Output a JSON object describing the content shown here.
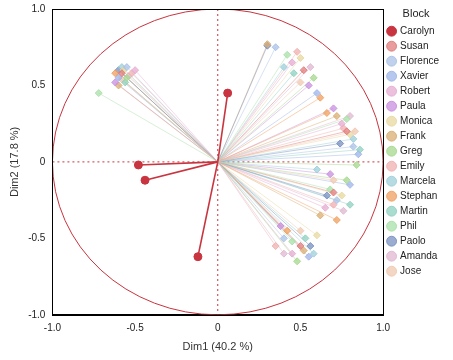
{
  "chart_data": {
    "type": "scatter",
    "x_label": "Dim1 (40.2 %)",
    "y_label": "Dim2 (17.8 %)",
    "legend_title": "Block",
    "legend": "right",
    "grid": false,
    "xlim": [
      -1,
      1
    ],
    "ylim": [
      -1,
      1
    ],
    "xticks": [
      {
        "value": -1,
        "label": "-1.0"
      },
      -0.5,
      0,
      0.5,
      {
        "value": 1,
        "label": "1.0"
      }
    ],
    "yticks": [
      {
        "value": -1,
        "label": "-1.0"
      },
      -0.5,
      0,
      0.5,
      {
        "value": 1,
        "label": "1.0"
      }
    ],
    "circle_radius": 1,
    "ref_lines": {
      "x": 0,
      "y": 0
    },
    "series": [
      {
        "name": "Carolyn",
        "color": "#c8343f",
        "marker": "circle",
        "x": [
          0.06,
          -0.48,
          -0.44,
          -0.12
        ],
        "y": [
          0.45,
          -0.02,
          -0.12,
          -0.62
        ]
      },
      {
        "name": "Susan",
        "color": "#e07b7b",
        "marker": "diamond",
        "x": [
          -0.58,
          0.52,
          0.78,
          0.7,
          0.5
        ],
        "y": [
          0.58,
          0.6,
          0.2,
          -0.2,
          -0.55
        ]
      },
      {
        "name": "Florence",
        "color": "#a9c2e6",
        "marker": "diamond",
        "x": [
          -0.55,
          0.35,
          0.82,
          0.72,
          0.4
        ],
        "y": [
          0.62,
          0.75,
          0.1,
          -0.25,
          -0.5
        ]
      },
      {
        "name": "Xavier",
        "color": "#9fb6ea",
        "marker": "diamond",
        "x": [
          -0.6,
          0.6,
          0.85,
          0.8,
          0.55
        ],
        "y": [
          0.55,
          0.45,
          0.05,
          -0.15,
          -0.62
        ]
      },
      {
        "name": "Robert",
        "color": "#e6acd2",
        "marker": "diamond",
        "x": [
          -0.5,
          0.45,
          0.75,
          0.65,
          0.45
        ],
        "y": [
          0.6,
          0.65,
          0.25,
          -0.3,
          -0.6
        ]
      },
      {
        "name": "Paula",
        "color": "#c98fe0",
        "marker": "diamond",
        "x": [
          -0.62,
          0.55,
          0.7,
          0.68,
          0.38
        ],
        "y": [
          0.52,
          0.5,
          0.35,
          -0.08,
          -0.42
        ]
      },
      {
        "name": "Monica",
        "color": "#e8d8a0",
        "marker": "diamond",
        "x": [
          -0.57,
          0.5,
          0.8,
          0.75,
          0.6
        ],
        "y": [
          0.6,
          0.68,
          0.18,
          -0.22,
          -0.48
        ]
      },
      {
        "name": "Frank",
        "color": "#d9ae72",
        "marker": "diamond",
        "x": [
          -0.6,
          0.3,
          0.72,
          0.62,
          0.52
        ],
        "y": [
          0.5,
          0.77,
          0.3,
          -0.35,
          -0.58
        ]
      },
      {
        "name": "Greg",
        "color": "#a6d88e",
        "marker": "diamond",
        "x": [
          -0.55,
          0.58,
          0.84,
          0.78,
          0.48
        ],
        "y": [
          0.55,
          0.55,
          -0.02,
          -0.12,
          -0.65
        ]
      },
      {
        "name": "Emily",
        "color": "#f0b0b0",
        "marker": "diamond",
        "x": [
          -0.52,
          0.48,
          0.76,
          0.7,
          0.35
        ],
        "y": [
          0.58,
          0.72,
          0.22,
          -0.28,
          -0.55
        ]
      },
      {
        "name": "Marcela",
        "color": "#9fcfd8",
        "marker": "diamond",
        "x": [
          -0.58,
          0.4,
          0.82,
          0.6,
          0.58
        ],
        "y": [
          0.62,
          0.62,
          0.15,
          -0.05,
          -0.6
        ]
      },
      {
        "name": "Stephan",
        "color": "#f0a060",
        "marker": "diamond",
        "x": [
          -0.62,
          0.62,
          0.66,
          0.72,
          0.42
        ],
        "y": [
          0.58,
          0.42,
          0.32,
          -0.38,
          -0.45
        ]
      },
      {
        "name": "Martin",
        "color": "#8fd0c0",
        "marker": "diamond",
        "x": [
          -0.56,
          0.46,
          0.86,
          0.8,
          0.53
        ],
        "y": [
          0.52,
          0.58,
          0.08,
          -0.28,
          -0.5
        ]
      },
      {
        "name": "Phil",
        "color": "#a8e0a8",
        "marker": "diamond",
        "x": [
          -0.72,
          0.42,
          0.78,
          0.68,
          0.45
        ],
        "y": [
          0.45,
          0.7,
          0.28,
          -0.18,
          -0.52
        ]
      },
      {
        "name": "Paolo",
        "color": "#7890c0",
        "marker": "diamond",
        "x": [
          -0.6,
          0.3,
          0.74,
          0.66,
          0.56
        ],
        "y": [
          0.6,
          0.76,
          0.12,
          -0.22,
          -0.55
        ]
      },
      {
        "name": "Amanda",
        "color": "#e0b8d0",
        "marker": "diamond",
        "x": [
          -0.54,
          0.56,
          0.8,
          0.76,
          0.4
        ],
        "y": [
          0.56,
          0.62,
          0.3,
          -0.32,
          -0.6
        ]
      },
      {
        "name": "Jose",
        "color": "#f0c8b0",
        "marker": "diamond",
        "x": [
          -0.58,
          0.5,
          0.83,
          0.7,
          0.5
        ],
        "y": [
          0.54,
          0.52,
          0.2,
          -0.12,
          -0.45
        ]
      }
    ]
  }
}
